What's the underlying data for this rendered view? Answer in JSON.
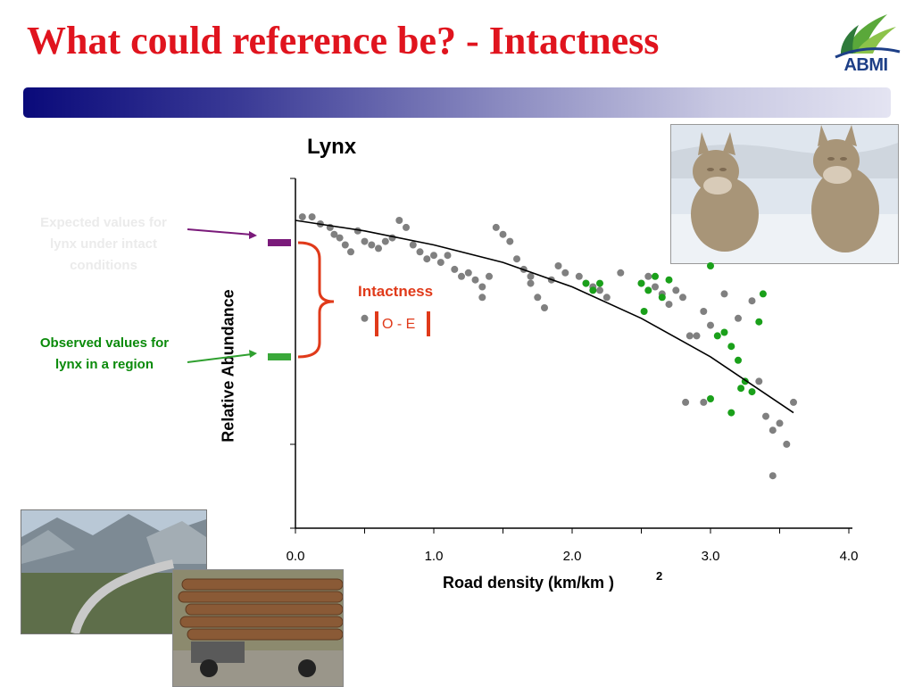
{
  "slide": {
    "title": "What could reference be? - Intactness",
    "logo_text": "ABMI",
    "logo_icon": "abmi-leaf-logo-icon",
    "photos": [
      "lynx-photo",
      "mountain-highway-photo",
      "logging-truck-photo"
    ],
    "colors": {
      "title": "#e0141e",
      "bar_dark": "#0a0a7a",
      "observed": "#0a8a0a",
      "expected": "#7a1a7a",
      "intactness": "#e03a1a",
      "points_grey": "#808080",
      "points_green": "#1aa01a"
    }
  },
  "annotations": {
    "expected_label": "Expected values for lynx under intact conditions",
    "observed_label": "Observed values for lynx in a region",
    "intactness_label": "Intactness",
    "oe_label": "O - E"
  },
  "chart_data": {
    "type": "scatter",
    "title": "Lynx",
    "xlabel": "Road density (km/km )",
    "xlabel_superscript": "2",
    "ylabel": "Relative Abundance",
    "xlim": [
      0,
      4
    ],
    "xticks": [
      "0.0",
      "1.0",
      "2.0",
      "3.0",
      "4.0"
    ],
    "y_tick_count": 2,
    "grid": false,
    "trend_curve": {
      "x": [
        0.0,
        0.5,
        1.0,
        1.5,
        2.0,
        2.5,
        3.0,
        3.6
      ],
      "y": [
        0.88,
        0.85,
        0.81,
        0.76,
        0.69,
        0.6,
        0.49,
        0.33
      ]
    },
    "series": [
      {
        "color": "#808080",
        "points": [
          [
            0.05,
            0.89
          ],
          [
            0.12,
            0.89
          ],
          [
            0.18,
            0.87
          ],
          [
            0.25,
            0.86
          ],
          [
            0.28,
            0.84
          ],
          [
            0.32,
            0.83
          ],
          [
            0.36,
            0.81
          ],
          [
            0.4,
            0.79
          ],
          [
            0.45,
            0.85
          ],
          [
            0.5,
            0.82
          ],
          [
            0.55,
            0.81
          ],
          [
            0.6,
            0.8
          ],
          [
            0.65,
            0.82
          ],
          [
            0.7,
            0.83
          ],
          [
            0.75,
            0.88
          ],
          [
            0.8,
            0.86
          ],
          [
            0.85,
            0.81
          ],
          [
            0.9,
            0.79
          ],
          [
            0.95,
            0.77
          ],
          [
            1.0,
            0.78
          ],
          [
            1.05,
            0.76
          ],
          [
            1.1,
            0.78
          ],
          [
            1.15,
            0.74
          ],
          [
            1.2,
            0.72
          ],
          [
            1.25,
            0.73
          ],
          [
            1.3,
            0.71
          ],
          [
            1.35,
            0.69
          ],
          [
            1.4,
            0.72
          ],
          [
            1.45,
            0.86
          ],
          [
            1.5,
            0.84
          ],
          [
            1.55,
            0.82
          ],
          [
            1.6,
            0.77
          ],
          [
            1.65,
            0.74
          ],
          [
            1.7,
            0.72
          ],
          [
            1.75,
            0.66
          ],
          [
            1.8,
            0.63
          ],
          [
            1.85,
            0.71
          ],
          [
            1.9,
            0.75
          ],
          [
            1.95,
            0.73
          ],
          [
            2.05,
            0.72
          ],
          [
            2.1,
            0.7
          ],
          [
            2.15,
            0.69
          ],
          [
            2.2,
            0.68
          ],
          [
            2.25,
            0.66
          ],
          [
            2.35,
            0.73
          ],
          [
            2.5,
            0.7
          ],
          [
            2.55,
            0.72
          ],
          [
            2.6,
            0.69
          ],
          [
            2.65,
            0.67
          ],
          [
            2.7,
            0.64
          ],
          [
            2.75,
            0.68
          ],
          [
            2.8,
            0.66
          ],
          [
            2.85,
            0.55
          ],
          [
            2.9,
            0.55
          ],
          [
            2.95,
            0.62
          ],
          [
            3.0,
            0.58
          ],
          [
            3.1,
            0.67
          ],
          [
            3.2,
            0.6
          ],
          [
            3.3,
            0.65
          ],
          [
            3.35,
            0.42
          ],
          [
            3.4,
            0.32
          ],
          [
            3.45,
            0.28
          ],
          [
            3.5,
            0.3
          ],
          [
            3.55,
            0.24
          ],
          [
            3.6,
            0.36
          ],
          [
            3.45,
            0.15
          ],
          [
            0.5,
            0.6
          ],
          [
            1.35,
            0.66
          ],
          [
            1.7,
            0.7
          ],
          [
            2.82,
            0.36
          ],
          [
            2.95,
            0.36
          ]
        ]
      },
      {
        "color": "#1aa01a",
        "points": [
          [
            2.1,
            0.7
          ],
          [
            2.15,
            0.68
          ],
          [
            2.5,
            0.7
          ],
          [
            2.55,
            0.68
          ],
          [
            2.6,
            0.72
          ],
          [
            2.65,
            0.66
          ],
          [
            2.7,
            0.71
          ],
          [
            3.0,
            0.75
          ],
          [
            3.05,
            0.55
          ],
          [
            3.1,
            0.56
          ],
          [
            3.15,
            0.52
          ],
          [
            3.2,
            0.48
          ],
          [
            3.25,
            0.42
          ],
          [
            3.3,
            0.39
          ],
          [
            3.35,
            0.59
          ],
          [
            3.38,
            0.67
          ],
          [
            3.0,
            0.37
          ],
          [
            3.15,
            0.33
          ],
          [
            3.22,
            0.4
          ],
          [
            2.2,
            0.7
          ],
          [
            2.52,
            0.62
          ]
        ]
      }
    ]
  }
}
